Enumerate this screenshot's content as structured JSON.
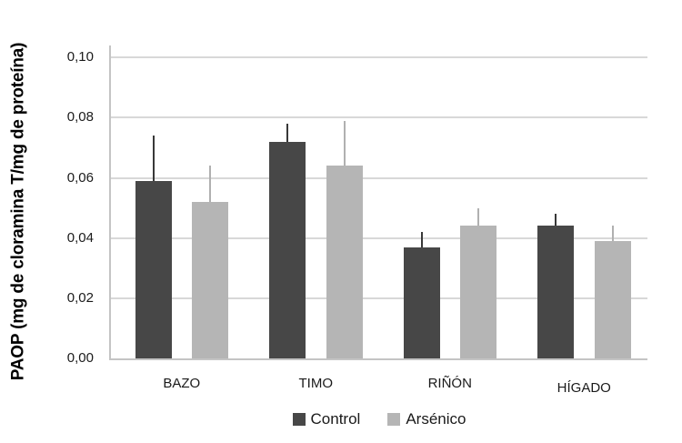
{
  "chart_data": {
    "type": "bar",
    "title": "",
    "xlabel": "",
    "ylabel": "PAOP (mg de cloramina T/mg de proteína)",
    "categories": [
      "BAZO",
      "TIMO",
      "RIÑÓN",
      "HÍGADO"
    ],
    "series": [
      {
        "name": "Control",
        "color": "#474747",
        "error_color": "#383838",
        "values": [
          0.059,
          0.072,
          0.037,
          0.044
        ],
        "errors": [
          0.015,
          0.006,
          0.005,
          0.004
        ]
      },
      {
        "name": "Arsénico",
        "color": "#b5b5b5",
        "error_color": "#b0b0b0",
        "values": [
          0.052,
          0.064,
          0.044,
          0.039
        ],
        "errors": [
          0.012,
          0.015,
          0.006,
          0.005
        ]
      }
    ],
    "ylim": [
      0,
      0.104
    ],
    "y_ticks": [
      0,
      0.02,
      0.04,
      0.06,
      0.08,
      0.1
    ],
    "y_tick_labels": [
      "0,00",
      "0,02",
      "0,04",
      "0,06",
      "0,08",
      "0,10"
    ],
    "grid": "horizontal",
    "legend_position": "bottom",
    "error_bars": "upper-only",
    "background_color": "#ffffff",
    "axis_line_color": "#c4c4c4",
    "gridline_color": "#d8d8d8",
    "text_color": "#1a1a1a"
  }
}
